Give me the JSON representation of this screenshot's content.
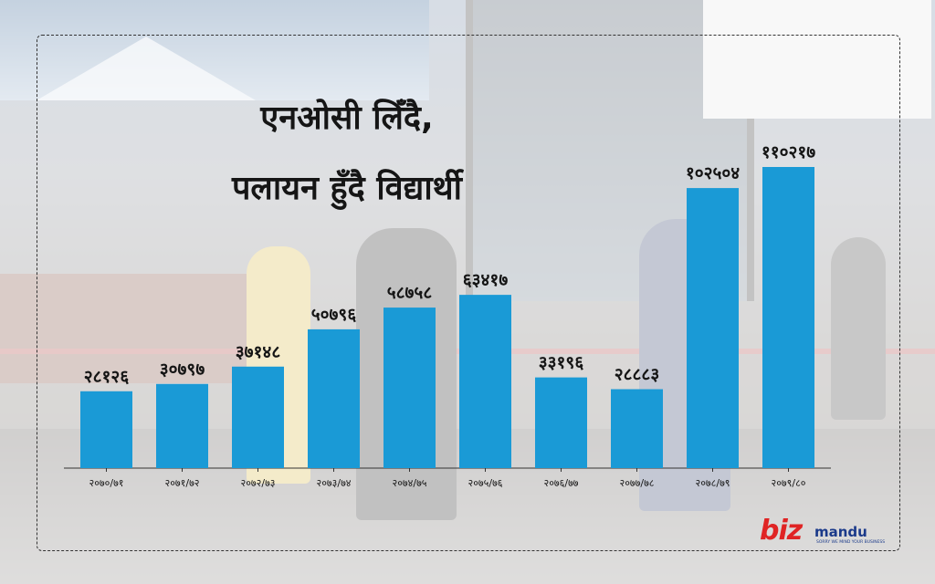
{
  "title": {
    "line1": "एनओसी लिँदै,",
    "line2": "पलायन हुँदै विद्यार्थी"
  },
  "chart_data": {
    "type": "bar",
    "categories": [
      "२०७०/७१",
      "२०७१/७२",
      "२०७२/७३",
      "२०७३/७४",
      "२०७४/७५",
      "२०७५/७६",
      "२०७६/७७",
      "२०७७/७८",
      "२०७८/७९",
      "२०७९/८०"
    ],
    "values": [
      28126,
      30797,
      37148,
      50796,
      58758,
      63417,
      33196,
      28883,
      102504,
      110217
    ],
    "value_labels": [
      "२८१२६",
      "३०७९७",
      "३७१४८",
      "५०७९६",
      "५८७५८",
      "६३४१७",
      "३३१९६",
      "२८८८३",
      "१०२५०४",
      "११०२१७"
    ],
    "bar_color": "#1a9ad6",
    "ylim": [
      0,
      125000
    ],
    "grid": false,
    "legend": "none"
  },
  "logo": {
    "part1": "biz",
    "part2": "mandu",
    "tagline": "SORRY WE MIND YOUR BUSINESS"
  }
}
